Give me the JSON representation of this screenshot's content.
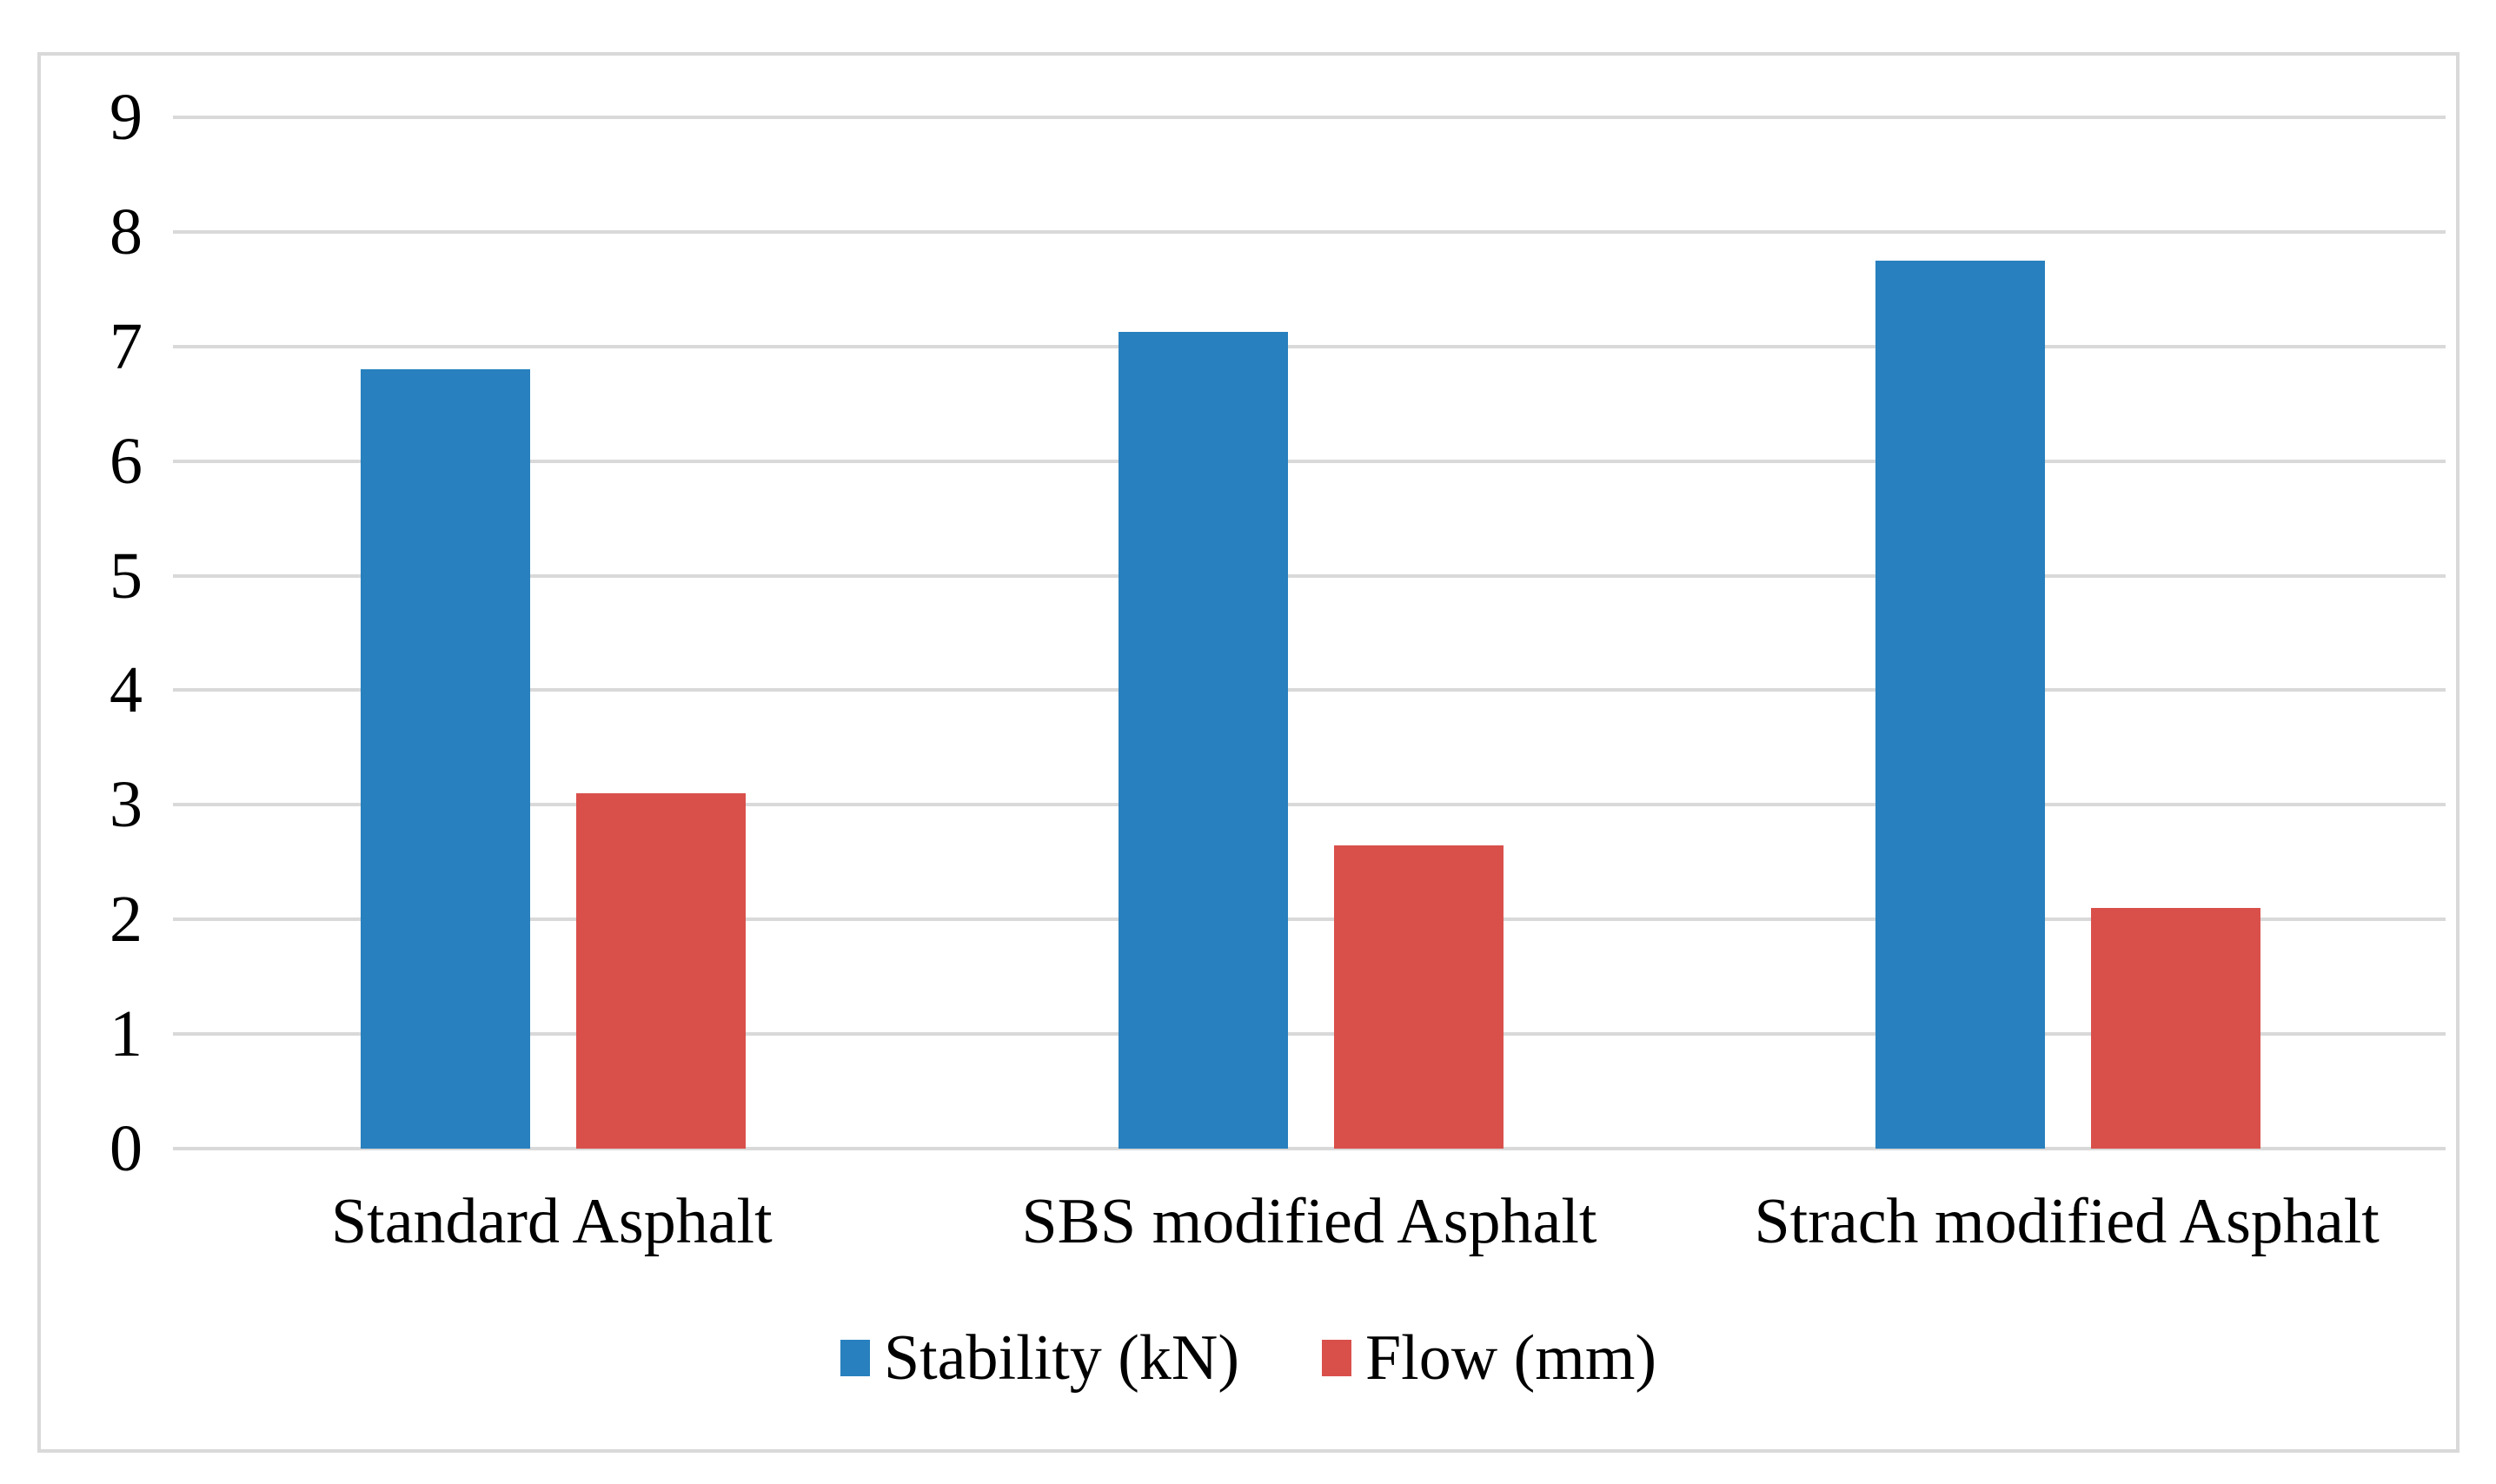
{
  "chart_data": {
    "type": "bar",
    "title": "",
    "xlabel": "",
    "ylabel": "",
    "categories": [
      "Standard Asphalt",
      "SBS modified Asphalt",
      "Strach modified Asphalt"
    ],
    "series": [
      {
        "name": "Stability (kN)",
        "color": "#2880be",
        "values": [
          6.8,
          7.13,
          7.75
        ]
      },
      {
        "name": "Flow (mm)",
        "color": "#d9504b",
        "values": [
          3.1,
          2.65,
          2.1
        ]
      }
    ],
    "ylim": [
      0,
      9
    ],
    "yticks": [
      0,
      1,
      2,
      3,
      4,
      5,
      6,
      7,
      8,
      9
    ],
    "grid": true,
    "legend_position": "bottom",
    "colors": {
      "gridline": "#d9d9d9",
      "figure_border": "#d9d9d9",
      "text": "#000000",
      "background": "#ffffff"
    }
  }
}
